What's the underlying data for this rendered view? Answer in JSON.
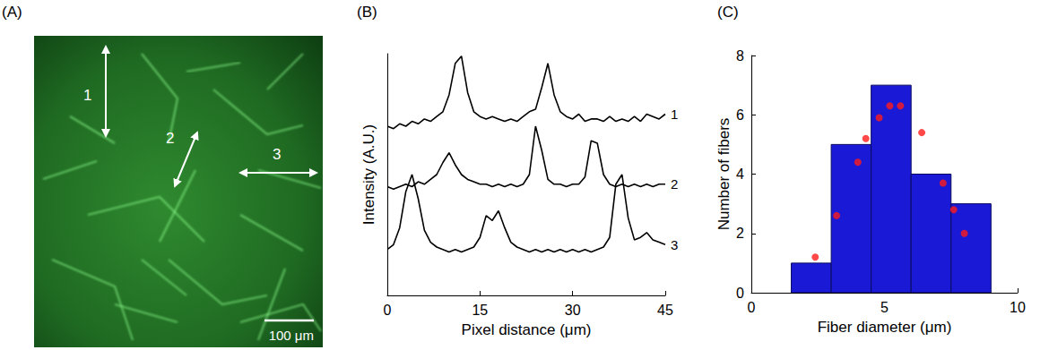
{
  "image": {
    "panel": "(A)",
    "arrows": [
      "1",
      "2",
      "3"
    ],
    "scale_bar": "100 μm"
  },
  "chart_data": [
    {
      "panel": "(B)",
      "type": "line",
      "x_label": "Pixel distance (μm)",
      "y_label": "Intensity (A.U.)",
      "x": [
        0,
        1,
        2,
        3,
        4,
        5,
        6,
        7,
        8,
        9,
        10,
        11,
        12,
        13,
        14,
        15,
        16,
        17,
        18,
        19,
        20,
        21,
        22,
        23,
        24,
        25,
        26,
        27,
        28,
        29,
        30,
        31,
        32,
        33,
        34,
        35,
        36,
        37,
        38,
        39,
        40,
        41,
        42,
        43,
        44,
        45
      ],
      "series": [
        {
          "name": "1",
          "color": "#000000",
          "values": [
            7.0,
            6.9,
            7.1,
            7.0,
            7.2,
            7.1,
            7.3,
            7.2,
            7.4,
            7.6,
            8.3,
            9.6,
            9.9,
            8.4,
            7.6,
            7.4,
            7.3,
            7.4,
            7.3,
            7.2,
            7.3,
            7.2,
            7.4,
            7.6,
            7.7,
            8.6,
            9.6,
            8.3,
            7.6,
            7.4,
            7.3,
            7.5,
            7.2,
            7.3,
            7.3,
            7.2,
            7.4,
            7.2,
            7.3,
            7.2,
            7.4,
            7.2,
            7.5,
            7.4,
            7.3,
            7.5
          ]
        },
        {
          "name": "2",
          "color": "#000000",
          "values": [
            4.5,
            4.4,
            4.5,
            4.6,
            4.5,
            4.7,
            4.6,
            4.8,
            5.0,
            5.5,
            5.9,
            5.4,
            5.0,
            4.8,
            4.7,
            4.6,
            4.6,
            4.5,
            4.6,
            4.5,
            4.6,
            4.5,
            4.6,
            5.0,
            7.0,
            6.0,
            4.8,
            4.6,
            4.6,
            4.5,
            4.6,
            4.6,
            4.9,
            6.4,
            6.3,
            5.0,
            4.6,
            4.5,
            4.6,
            4.5,
            4.6,
            4.5,
            4.6,
            4.5,
            4.6,
            4.6
          ]
        },
        {
          "name": "3",
          "color": "#000000",
          "values": [
            1.9,
            2.1,
            2.8,
            4.3,
            5.0,
            4.0,
            2.7,
            2.2,
            2.0,
            1.9,
            1.8,
            1.9,
            1.8,
            1.9,
            2.0,
            2.4,
            3.3,
            3.1,
            3.5,
            2.8,
            2.2,
            2.0,
            1.9,
            1.8,
            1.9,
            1.8,
            1.9,
            1.8,
            1.9,
            1.8,
            1.9,
            1.8,
            1.9,
            1.8,
            1.9,
            2.0,
            2.4,
            4.6,
            5.0,
            3.2,
            2.3,
            2.4,
            2.6,
            2.3,
            2.2,
            2.1
          ]
        }
      ],
      "xlim": [
        0,
        45
      ],
      "xticks": [
        0,
        15,
        30,
        45
      ],
      "ylim": [
        0,
        10
      ],
      "tick_labels": "x",
      "grid": false
    },
    {
      "panel": "(C)",
      "type": "histogram",
      "x_label": "Fiber diameter (μm)",
      "y_label": "Number of fibers",
      "bins": [
        1.5,
        3,
        4.5,
        6,
        7.5,
        9
      ],
      "counts": [
        1,
        5,
        7,
        4,
        3
      ],
      "color": "#1a1ad6",
      "points": {
        "x": [
          2.4,
          3.2,
          4.0,
          4.3,
          4.8,
          5.2,
          5.6,
          6.4,
          7.2,
          7.6,
          8.0
        ],
        "y": [
          1.2,
          2.6,
          4.4,
          5.2,
          5.9,
          6.3,
          6.3,
          5.4,
          3.7,
          2.8,
          2.0
        ],
        "color": "#ff1a1a",
        "marker": "circle"
      },
      "xlim": [
        0,
        10
      ],
      "xticks": [
        0,
        5,
        10
      ],
      "ylim": [
        0,
        8
      ],
      "yticks": [
        0,
        2,
        4,
        6,
        8
      ],
      "grid": false
    }
  ]
}
